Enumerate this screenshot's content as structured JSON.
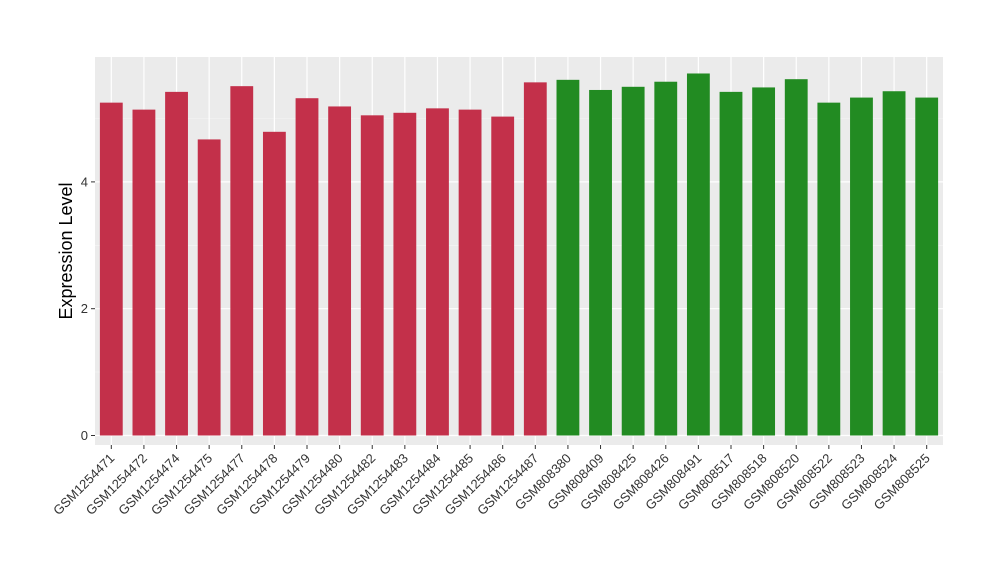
{
  "chart_data": {
    "type": "bar",
    "ylabel": "Expression Level",
    "xlabel": "",
    "ylim": [
      -0.15,
      5.97
    ],
    "y_ticks": [
      0,
      2,
      4
    ],
    "y_tick_labels": [
      "0",
      "2",
      "4"
    ],
    "grid": true,
    "panel_background": "#ebebeb",
    "categories": [
      "GSM1254471",
      "GSM1254472",
      "GSM1254474",
      "GSM1254475",
      "GSM1254477",
      "GSM1254478",
      "GSM1254479",
      "GSM1254480",
      "GSM1254482",
      "GSM1254483",
      "GSM1254484",
      "GSM1254485",
      "GSM1254486",
      "GSM1254487",
      "GSM808380",
      "GSM808409",
      "GSM808425",
      "GSM808426",
      "GSM808491",
      "GSM808517",
      "GSM808518",
      "GSM808520",
      "GSM808522",
      "GSM808523",
      "GSM808524",
      "GSM808525"
    ],
    "values": [
      5.25,
      5.14,
      5.42,
      4.67,
      5.51,
      4.79,
      5.32,
      5.19,
      5.05,
      5.09,
      5.16,
      5.14,
      5.03,
      5.57,
      5.61,
      5.45,
      5.5,
      5.58,
      5.71,
      5.42,
      5.49,
      5.62,
      5.25,
      5.33,
      5.43,
      5.33
    ],
    "colors": [
      "#c3304a",
      "#c3304a",
      "#c3304a",
      "#c3304a",
      "#c3304a",
      "#c3304a",
      "#c3304a",
      "#c3304a",
      "#c3304a",
      "#c3304a",
      "#c3304a",
      "#c3304a",
      "#c3304a",
      "#c3304a",
      "#228b22",
      "#228b22",
      "#228b22",
      "#228b22",
      "#228b22",
      "#228b22",
      "#228b22",
      "#228b22",
      "#228b22",
      "#228b22",
      "#228b22",
      "#228b22"
    ]
  }
}
